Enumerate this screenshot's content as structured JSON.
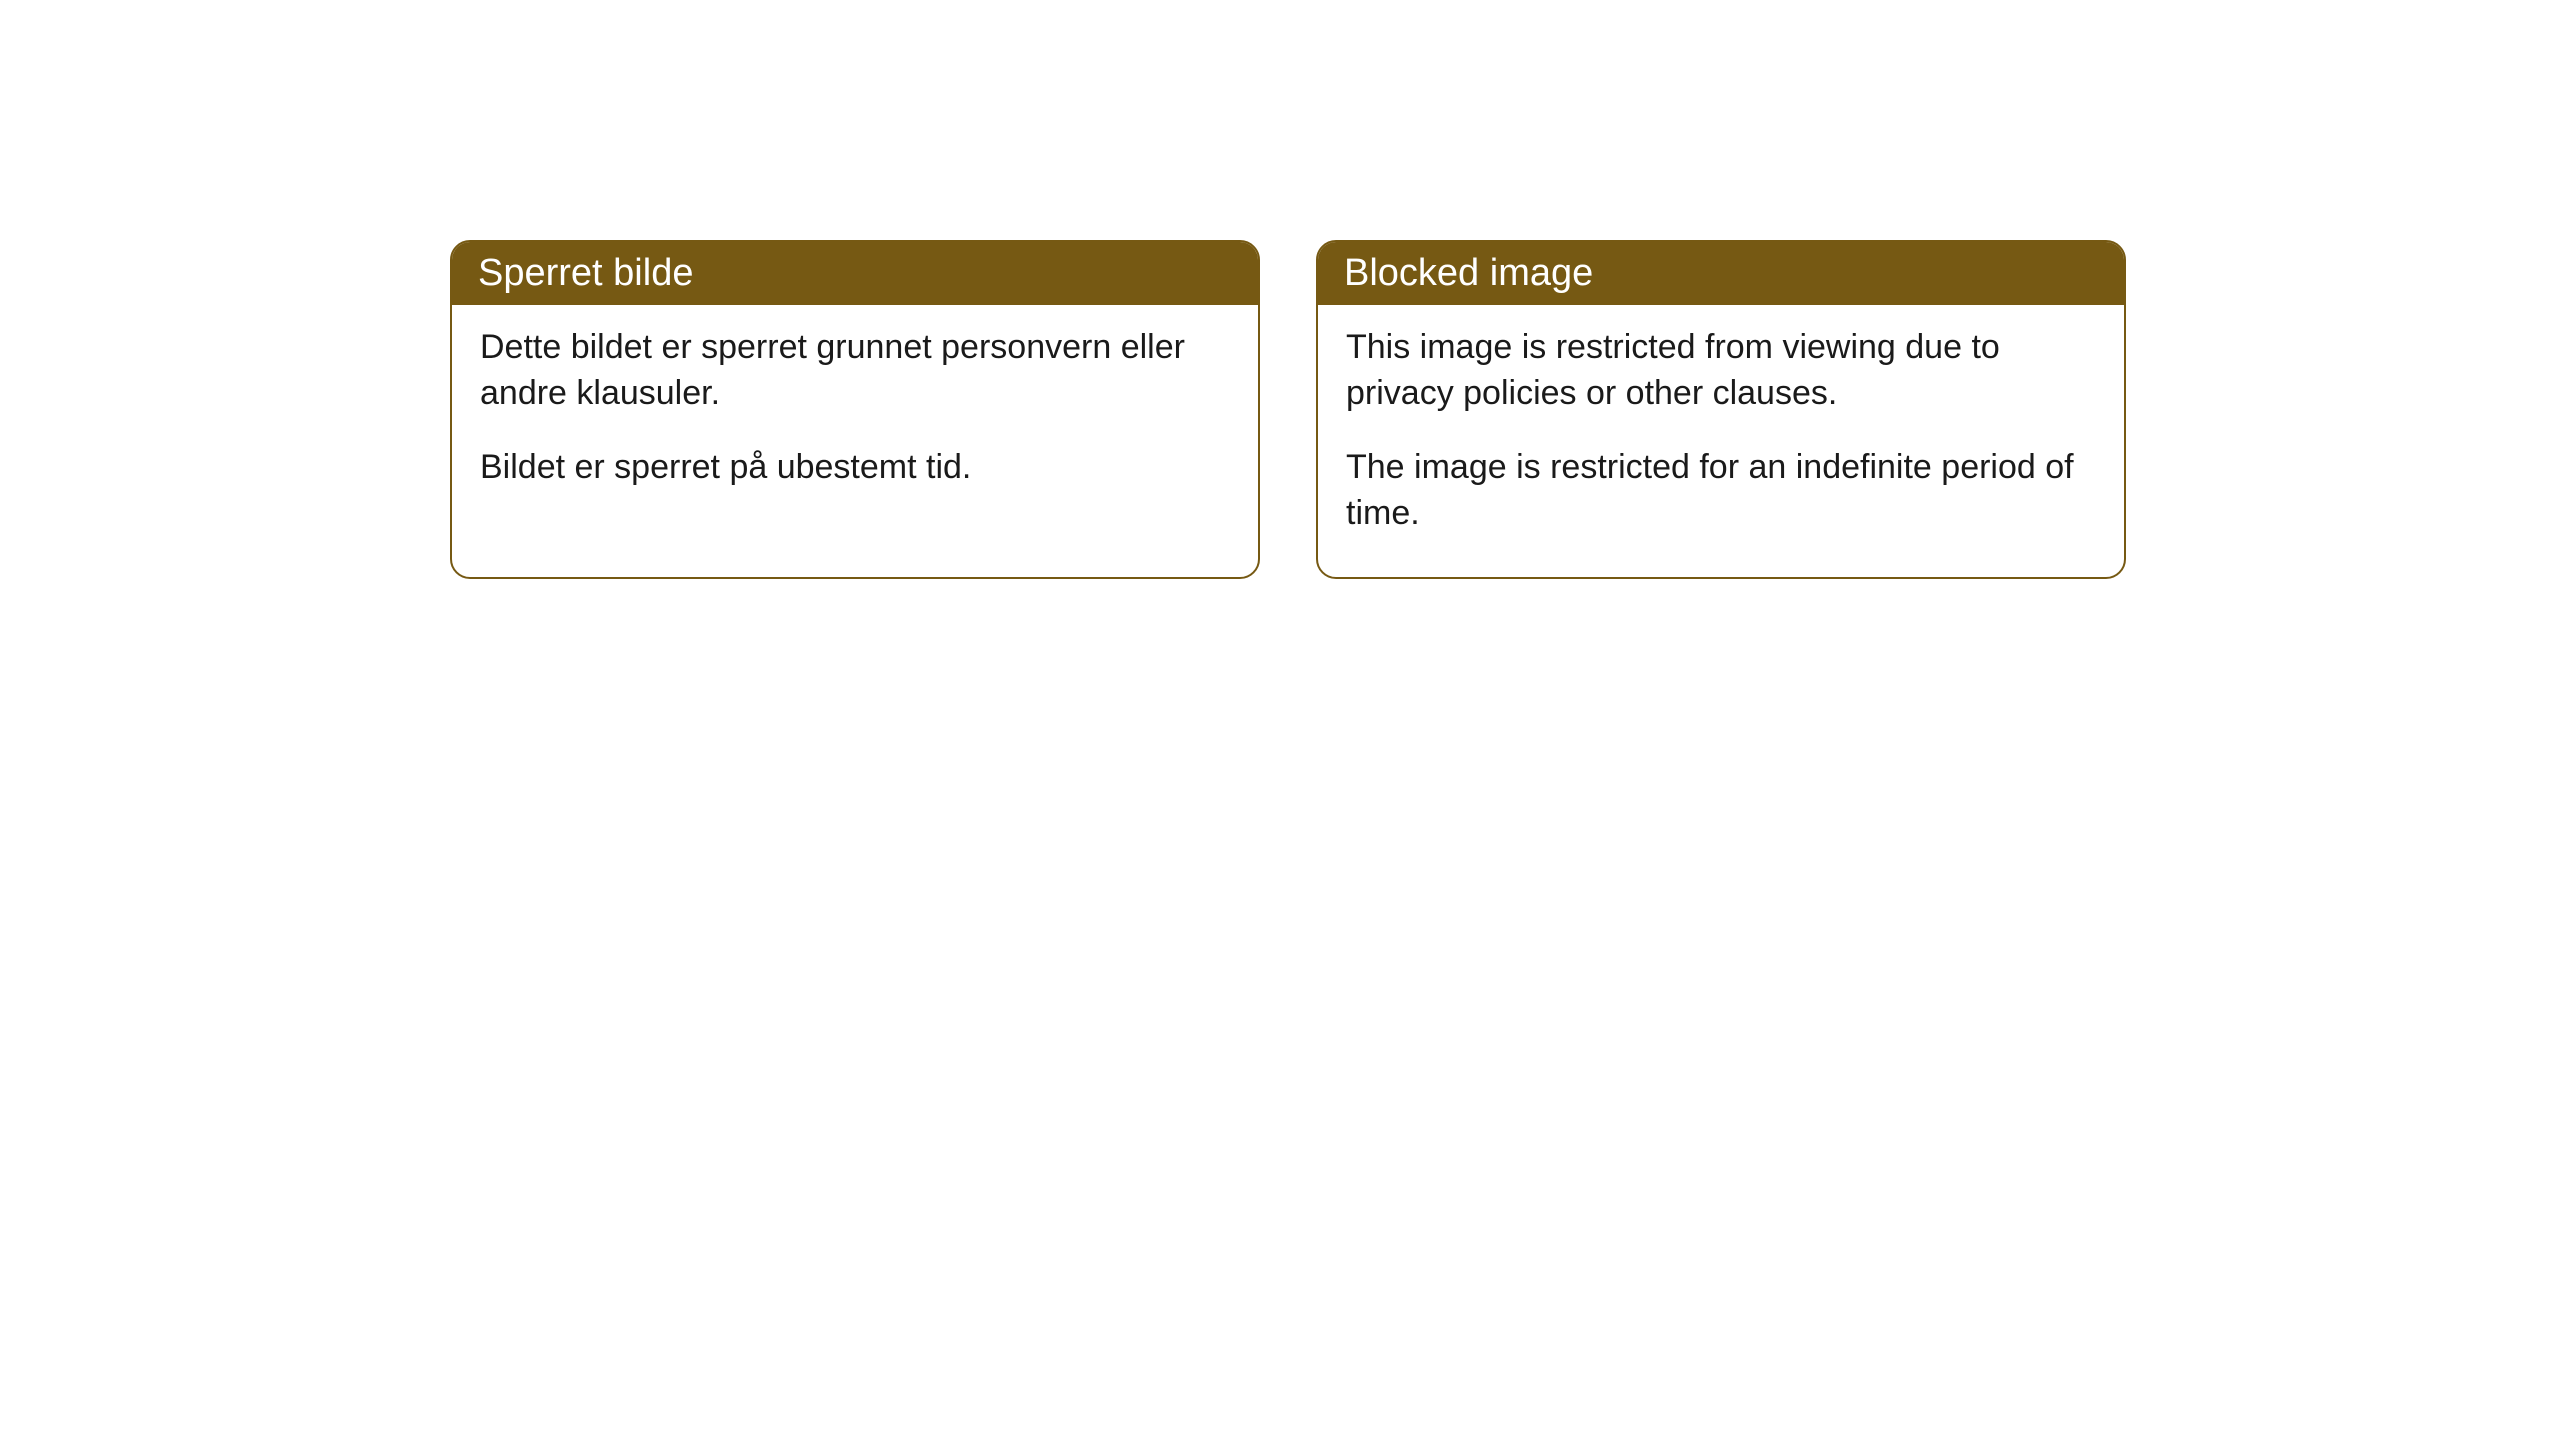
{
  "cards": [
    {
      "header": "Sperret bilde",
      "paragraph1": "Dette bildet er sperret grunnet personvern eller andre klausuler.",
      "paragraph2": "Bildet er sperret på ubestemt tid."
    },
    {
      "header": "Blocked image",
      "paragraph1": "This image is restricted from viewing due to privacy policies or other clauses.",
      "paragraph2": "The image is restricted for an indefinite period of time."
    }
  ],
  "styling": {
    "header_bg_color": "#765913",
    "header_text_color": "#ffffff",
    "border_color": "#765913",
    "body_bg_color": "#ffffff",
    "body_text_color": "#1a1a1a",
    "border_radius": 20,
    "header_fontsize": 38,
    "body_fontsize": 34
  }
}
